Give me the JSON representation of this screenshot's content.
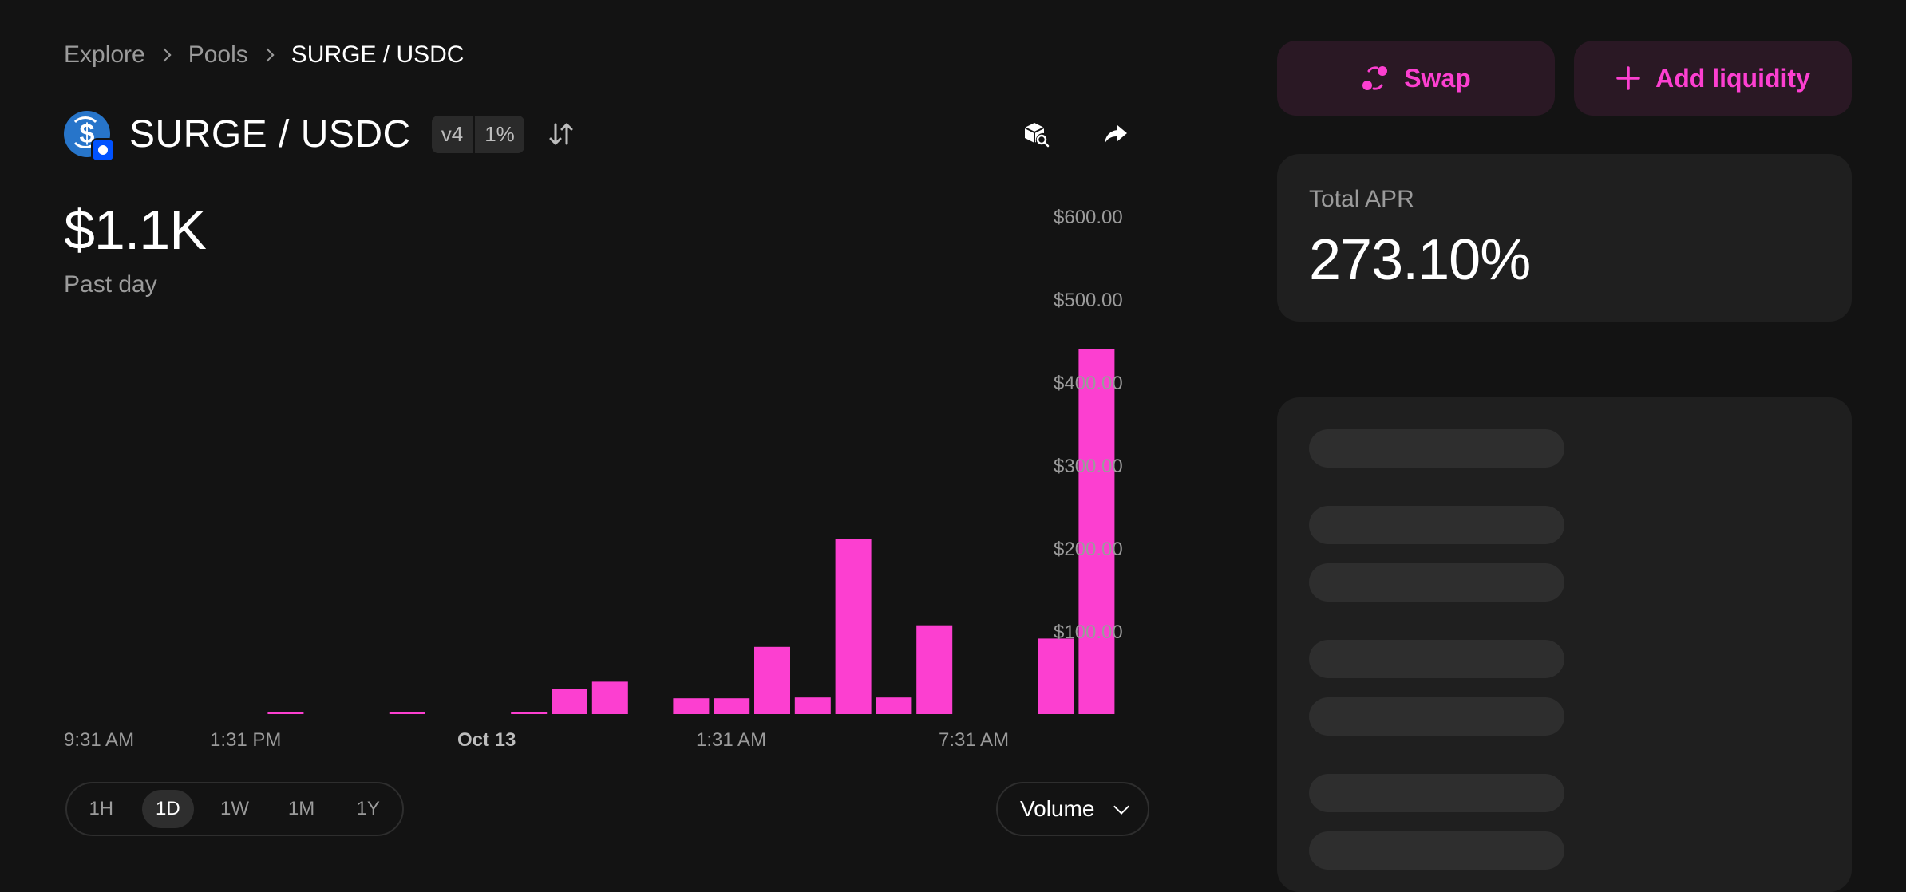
{
  "breadcrumb": {
    "items": [
      "Explore",
      "Pools",
      "SURGE / USDC"
    ]
  },
  "pool": {
    "pair": "SURGE / USDC",
    "version": "v4",
    "fee": "1%",
    "token_icon": "usdc-token-icon",
    "chain_icon": "base-chain-icon"
  },
  "header_actions": {
    "explorer_icon": "cube-search-icon",
    "share_icon": "share-arrow-icon"
  },
  "summary": {
    "value": "$1.1K",
    "period": "Past day"
  },
  "chart_data": {
    "type": "bar",
    "metric": "Volume",
    "x_labels": [
      "9:31 AM",
      "1:31 PM",
      "Oct 13",
      "1:31 AM",
      "7:31 AM"
    ],
    "y_ticks": [
      "$100.00",
      "$200.00",
      "$300.00",
      "$400.00",
      "$500.00",
      "$600.00"
    ],
    "ylim": [
      0,
      600
    ],
    "bar_color": "#fc3fd0",
    "values": [
      0,
      0,
      0,
      1,
      0,
      0,
      2,
      0,
      0,
      1,
      30,
      39,
      0,
      19,
      19,
      81,
      20,
      211,
      20,
      107,
      0,
      0,
      91,
      440
    ]
  },
  "controls": {
    "time_ranges": [
      "1H",
      "1D",
      "1W",
      "1M",
      "1Y"
    ],
    "active_time_range": "1D",
    "metric_select": "Volume"
  },
  "actions": {
    "swap": "Swap",
    "add_liquidity": "Add liquidity",
    "swap_icon": "swap-circles-icon",
    "add_icon": "plus-icon"
  },
  "apr": {
    "label": "Total APR",
    "value": "273.10%"
  },
  "colors": {
    "accent": "#fc3fd0",
    "background": "#131313",
    "card": "#1f1f1f",
    "muted": "#9b9b9b"
  }
}
